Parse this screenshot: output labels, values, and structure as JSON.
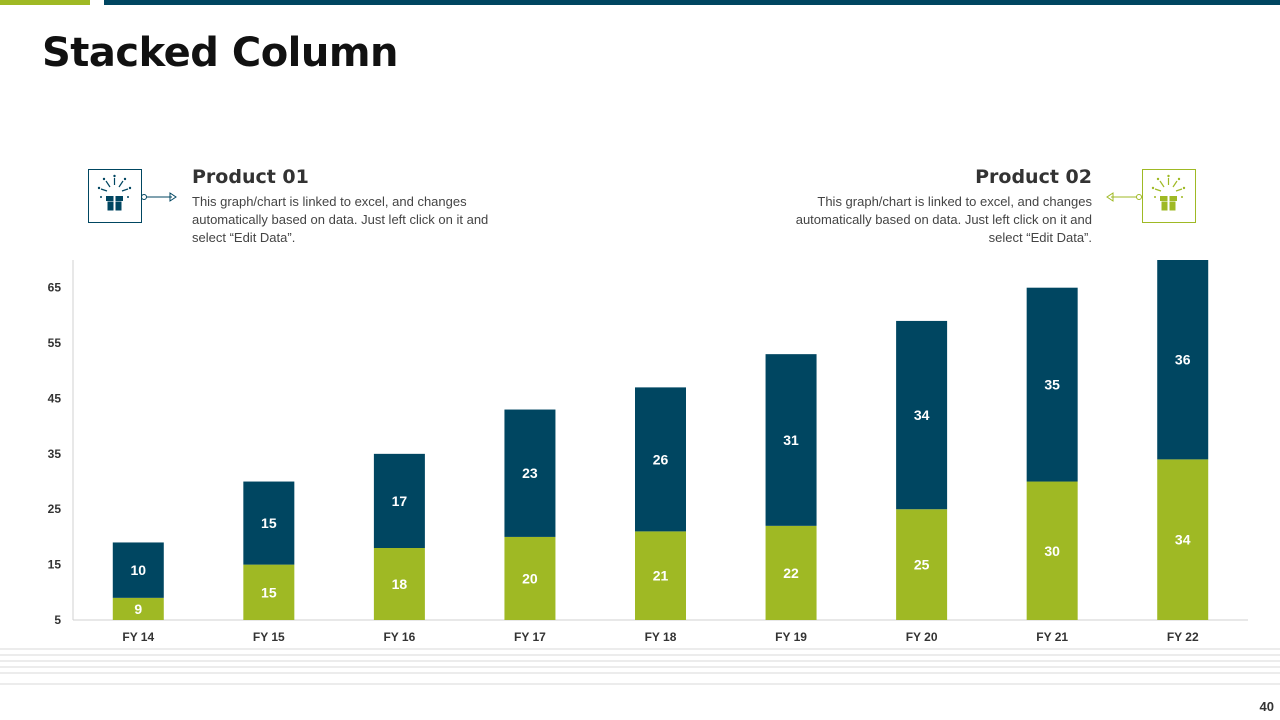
{
  "slide": {
    "title": "Stacked Column",
    "page_number": "40"
  },
  "legend_blocks": [
    {
      "title": "Product 01",
      "description": "This graph/chart is linked to excel, and changes automatically based on data. Just left click on it and select “Edit Data”.",
      "color": "#004661",
      "icon": "fireworks-gift-icon"
    },
    {
      "title": "Product 02",
      "description": "This graph/chart is linked to excel, and changes automatically based on data. Just left click on it and select “Edit Data”.",
      "color": "#9fb924",
      "icon": "fireworks-gift-icon"
    }
  ],
  "colors": {
    "navy": "#004661",
    "green": "#9fb924"
  },
  "chart_data": {
    "type": "bar",
    "stacked": true,
    "title": "",
    "xlabel": "",
    "ylabel": "",
    "categories": [
      "FY 14",
      "FY 15",
      "FY 16",
      "FY 17",
      "FY 18",
      "FY 19",
      "FY 20",
      "FY 21",
      "FY 22"
    ],
    "series": [
      {
        "name": "Product 02",
        "color": "#9fb924",
        "values": [
          9,
          15,
          18,
          20,
          21,
          22,
          25,
          30,
          34
        ]
      },
      {
        "name": "Product 01",
        "color": "#004661",
        "values": [
          10,
          15,
          17,
          23,
          26,
          31,
          34,
          35,
          36
        ]
      }
    ],
    "ylim": [
      5,
      70
    ],
    "yticks": [
      5,
      15,
      25,
      35,
      45,
      55,
      65
    ],
    "grid": false,
    "data_labels": true
  }
}
